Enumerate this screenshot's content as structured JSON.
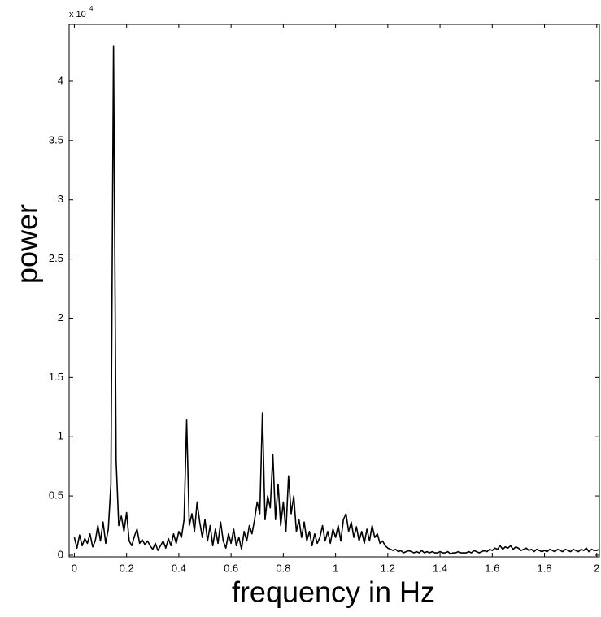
{
  "chart_data": {
    "type": "line",
    "xlabel": "frequency in Hz",
    "ylabel": "power",
    "y_multiplier": {
      "base": "x 10",
      "exponent": "4"
    },
    "xlim": [
      -0.02,
      2.01
    ],
    "ylim": [
      -0.014,
      4.48
    ],
    "xticks": [
      0,
      0.2,
      0.4,
      0.6,
      0.8,
      1,
      1.2,
      1.4,
      1.6,
      1.8,
      2
    ],
    "yticks": [
      0,
      0.5,
      1,
      1.5,
      2,
      2.5,
      3,
      3.5,
      4
    ],
    "color": "#000000",
    "x": [
      0,
      0.01,
      0.02,
      0.03,
      0.04,
      0.05,
      0.06,
      0.07,
      0.08,
      0.09,
      0.1,
      0.11,
      0.12,
      0.13,
      0.14,
      0.15,
      0.16,
      0.17,
      0.18,
      0.19,
      0.2,
      0.21,
      0.22,
      0.23,
      0.24,
      0.25,
      0.26,
      0.27,
      0.28,
      0.29,
      0.3,
      0.31,
      0.32,
      0.33,
      0.34,
      0.35,
      0.36,
      0.37,
      0.38,
      0.39,
      0.4,
      0.41,
      0.42,
      0.43,
      0.44,
      0.45,
      0.46,
      0.47,
      0.48,
      0.49,
      0.5,
      0.51,
      0.52,
      0.53,
      0.54,
      0.55,
      0.56,
      0.57,
      0.58,
      0.59,
      0.6,
      0.61,
      0.62,
      0.63,
      0.64,
      0.65,
      0.66,
      0.67,
      0.68,
      0.69,
      0.7,
      0.71,
      0.72,
      0.73,
      0.74,
      0.75,
      0.76,
      0.77,
      0.78,
      0.79,
      0.8,
      0.81,
      0.82,
      0.83,
      0.84,
      0.85,
      0.86,
      0.87,
      0.88,
      0.89,
      0.9,
      0.91,
      0.92,
      0.93,
      0.94,
      0.95,
      0.96,
      0.97,
      0.98,
      0.99,
      1,
      1.01,
      1.02,
      1.03,
      1.04,
      1.05,
      1.06,
      1.07,
      1.08,
      1.09,
      1.1,
      1.11,
      1.12,
      1.13,
      1.14,
      1.15,
      1.16,
      1.17,
      1.18,
      1.19,
      1.2,
      1.21,
      1.22,
      1.23,
      1.24,
      1.25,
      1.26,
      1.27,
      1.28,
      1.29,
      1.3,
      1.31,
      1.32,
      1.33,
      1.34,
      1.35,
      1.36,
      1.37,
      1.38,
      1.39,
      1.4,
      1.41,
      1.42,
      1.43,
      1.44,
      1.45,
      1.46,
      1.47,
      1.48,
      1.49,
      1.5,
      1.51,
      1.52,
      1.53,
      1.54,
      1.55,
      1.56,
      1.57,
      1.58,
      1.59,
      1.6,
      1.61,
      1.62,
      1.63,
      1.64,
      1.65,
      1.66,
      1.67,
      1.68,
      1.69,
      1.7,
      1.71,
      1.72,
      1.73,
      1.74,
      1.75,
      1.76,
      1.77,
      1.78,
      1.79,
      1.8,
      1.81,
      1.82,
      1.83,
      1.84,
      1.85,
      1.86,
      1.87,
      1.88,
      1.89,
      1.9,
      1.91,
      1.92,
      1.93,
      1.94,
      1.95,
      1.96,
      1.97,
      1.98,
      1.99,
      2,
      2.01,
      2.02
    ],
    "values": [
      0.15,
      0.06,
      0.17,
      0.08,
      0.14,
      0.1,
      0.18,
      0.07,
      0.12,
      0.25,
      0.12,
      0.28,
      0.1,
      0.22,
      0.6,
      4.3,
      0.8,
      0.25,
      0.33,
      0.2,
      0.36,
      0.12,
      0.08,
      0.16,
      0.22,
      0.1,
      0.13,
      0.09,
      0.12,
      0.08,
      0.05,
      0.1,
      0.04,
      0.08,
      0.12,
      0.06,
      0.14,
      0.08,
      0.18,
      0.1,
      0.2,
      0.15,
      0.3,
      1.14,
      0.25,
      0.35,
      0.2,
      0.45,
      0.28,
      0.15,
      0.3,
      0.12,
      0.25,
      0.08,
      0.22,
      0.1,
      0.28,
      0.12,
      0.06,
      0.18,
      0.1,
      0.22,
      0.08,
      0.15,
      0.05,
      0.2,
      0.12,
      0.25,
      0.18,
      0.3,
      0.45,
      0.35,
      1.2,
      0.3,
      0.5,
      0.4,
      0.85,
      0.3,
      0.6,
      0.25,
      0.45,
      0.2,
      0.67,
      0.35,
      0.5,
      0.2,
      0.3,
      0.15,
      0.28,
      0.12,
      0.2,
      0.08,
      0.18,
      0.1,
      0.15,
      0.25,
      0.12,
      0.2,
      0.1,
      0.22,
      0.15,
      0.25,
      0.12,
      0.3,
      0.35,
      0.2,
      0.28,
      0.15,
      0.24,
      0.12,
      0.2,
      0.1,
      0.22,
      0.12,
      0.25,
      0.15,
      0.18,
      0.1,
      0.12,
      0.08,
      0.06,
      0.05,
      0.04,
      0.05,
      0.03,
      0.04,
      0.02,
      0.03,
      0.04,
      0.03,
      0.02,
      0.03,
      0.02,
      0.04,
      0.02,
      0.03,
      0.02,
      0.03,
      0.02,
      0.02,
      0.03,
      0.02,
      0.02,
      0.03,
      0.01,
      0.02,
      0.02,
      0.03,
      0.02,
      0.02,
      0.02,
      0.03,
      0.02,
      0.04,
      0.03,
      0.02,
      0.03,
      0.04,
      0.03,
      0.05,
      0.04,
      0.06,
      0.05,
      0.08,
      0.05,
      0.07,
      0.06,
      0.08,
      0.05,
      0.07,
      0.06,
      0.04,
      0.05,
      0.06,
      0.04,
      0.05,
      0.03,
      0.05,
      0.04,
      0.03,
      0.04,
      0.03,
      0.05,
      0.04,
      0.03,
      0.05,
      0.04,
      0.03,
      0.05,
      0.04,
      0.03,
      0.05,
      0.04,
      0.03,
      0.05,
      0.04,
      0.06,
      0.03,
      0.05,
      0.04,
      0.04,
      0.05,
      0.03
    ]
  }
}
